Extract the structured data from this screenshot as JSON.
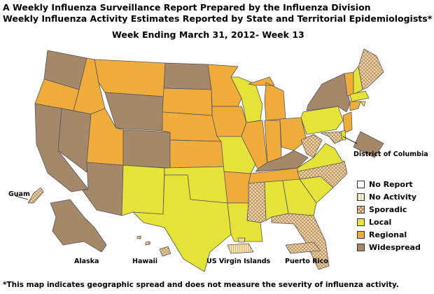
{
  "header": {
    "title_line1": "A Weekly Influenza Surveillance Report Prepared by the Influenza Division",
    "title_line2": "Weekly Influenza Activity Estimates Reported by State and Territorial Epidemiologists*",
    "week": "Week Ending March 31, 2012- Week 13"
  },
  "labels": {
    "dc": "District of Columbia",
    "guam": "Guam",
    "alaska": "Alaska",
    "hawaii": "Hawaii",
    "usvi": "US Virgin Islands",
    "pr": "Puerto Rico"
  },
  "legend": [
    {
      "key": "noreport",
      "label": "No Report"
    },
    {
      "key": "noactivity",
      "label": "No Activity"
    },
    {
      "key": "sporadic",
      "label": "Sporadic"
    },
    {
      "key": "local",
      "label": "Local"
    },
    {
      "key": "regional",
      "label": "Regional"
    },
    {
      "key": "widespread",
      "label": "Widespread"
    }
  ],
  "colors": {
    "local": "#e5e337",
    "regional": "#f0ac3a",
    "widespread": "#a5876a",
    "sporadic": "#f3d6a8",
    "border": "#555555"
  },
  "activity_levels": {
    "Washington": "widespread",
    "Oregon": "regional",
    "California": "widespread",
    "Nevada": "widespread",
    "Idaho": "regional",
    "Montana": "regional",
    "Wyoming": "widespread",
    "Utah": "regional",
    "Colorado": "widespread",
    "Arizona": "widespread",
    "New Mexico": "local",
    "North Dakota": "widespread",
    "South Dakota": "regional",
    "Nebraska": "regional",
    "Kansas": "regional",
    "Oklahoma": "local",
    "Texas": "local",
    "Minnesota": "regional",
    "Iowa": "regional",
    "Missouri": "local",
    "Arkansas": "regional",
    "Louisiana": "local",
    "Wisconsin": "local",
    "Illinois": "regional",
    "Michigan": "regional",
    "Indiana": "regional",
    "Ohio": "regional",
    "Kentucky": "widespread",
    "Tennessee": "regional",
    "Mississippi": "sporadic",
    "Alabama": "local",
    "Georgia": "local",
    "Florida": "sporadic",
    "South Carolina": "local",
    "North Carolina": "sporadic",
    "Virginia": "local",
    "West Virginia": "sporadic",
    "Pennsylvania": "local",
    "New York": "widespread",
    "Vermont": "regional",
    "New Hampshire": "local",
    "Maine": "sporadic",
    "Massachusetts": "local",
    "Connecticut": "regional",
    "Rhode Island": "local",
    "New Jersey": "regional",
    "Delaware": "local",
    "Maryland": "sporadic",
    "District of Columbia": "widespread",
    "Alaska": "widespread",
    "Hawaii": "sporadic",
    "Guam": "sporadic",
    "US Virgin Islands": "noactivity",
    "Puerto Rico": "sporadic"
  },
  "footnote": "*This map indicates geographic spread and does not measure the severity of influenza activity."
}
